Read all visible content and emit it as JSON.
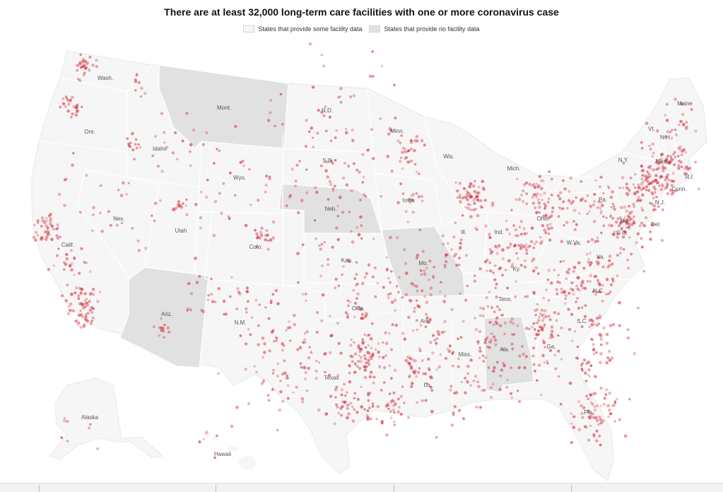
{
  "title": "There are at least 32,000 long-term care facilities with one or more coronavirus case",
  "legend": {
    "some_data_label": "States that provide some facility data",
    "no_data_label": "States that provide no facility data"
  },
  "colors": {
    "land_some_data": "#f6f6f6",
    "land_no_data": "#e1e1e1",
    "state_border": "#ffffff",
    "dot": "#d53040"
  },
  "no_data_states": [
    "Mont.",
    "Neb.",
    "Mo.",
    "Ariz.",
    "Ala."
  ],
  "state_labels": [
    {
      "key": "wa",
      "text": "Wash."
    },
    {
      "key": "or",
      "text": "Ore."
    },
    {
      "key": "ca",
      "text": "Calif."
    },
    {
      "key": "id",
      "text": "Idaho"
    },
    {
      "key": "nv",
      "text": "Nev."
    },
    {
      "key": "mt",
      "text": "Mont."
    },
    {
      "key": "wy",
      "text": "Wyo."
    },
    {
      "key": "ut",
      "text": "Utah"
    },
    {
      "key": "az",
      "text": "Ariz."
    },
    {
      "key": "co",
      "text": "Colo."
    },
    {
      "key": "nm",
      "text": "N.M."
    },
    {
      "key": "nd",
      "text": "N.D."
    },
    {
      "key": "sd",
      "text": "S.D."
    },
    {
      "key": "ne",
      "text": "Neb."
    },
    {
      "key": "ks",
      "text": "Kan."
    },
    {
      "key": "ok",
      "text": "Okla."
    },
    {
      "key": "tx",
      "text": "Texas"
    },
    {
      "key": "mn",
      "text": "Minn."
    },
    {
      "key": "ia",
      "text": "Iowa"
    },
    {
      "key": "mo",
      "text": "Mo."
    },
    {
      "key": "ar",
      "text": "Ark."
    },
    {
      "key": "la",
      "text": "La."
    },
    {
      "key": "wi",
      "text": "Wis."
    },
    {
      "key": "il",
      "text": "Ill."
    },
    {
      "key": "ms",
      "text": "Miss."
    },
    {
      "key": "mi",
      "text": "Mich."
    },
    {
      "key": "in",
      "text": "Ind."
    },
    {
      "key": "ky",
      "text": "Ky."
    },
    {
      "key": "tn",
      "text": "Tenn."
    },
    {
      "key": "al",
      "text": "Ala."
    },
    {
      "key": "oh",
      "text": "Ohio"
    },
    {
      "key": "ga",
      "text": "Ga."
    },
    {
      "key": "fl",
      "text": "Fla."
    },
    {
      "key": "sc",
      "text": "S.C."
    },
    {
      "key": "nc",
      "text": "N.C."
    },
    {
      "key": "va",
      "text": "Va."
    },
    {
      "key": "wv",
      "text": "W.Va."
    },
    {
      "key": "pa",
      "text": "Pa."
    },
    {
      "key": "md",
      "text": "Md."
    },
    {
      "key": "de",
      "text": "Del."
    },
    {
      "key": "dc",
      "text": "D.C."
    },
    {
      "key": "nj",
      "text": "N.J."
    },
    {
      "key": "ny",
      "text": "N.Y."
    },
    {
      "key": "ct",
      "text": "Conn."
    },
    {
      "key": "ri",
      "text": "R.I."
    },
    {
      "key": "ma",
      "text": "Mass."
    },
    {
      "key": "vt",
      "text": "Vt."
    },
    {
      "key": "nh",
      "text": "N.H."
    },
    {
      "key": "me",
      "text": "Maine"
    },
    {
      "key": "ak",
      "text": "Alaska"
    },
    {
      "key": "hi",
      "text": "Hawaii"
    }
  ]
}
